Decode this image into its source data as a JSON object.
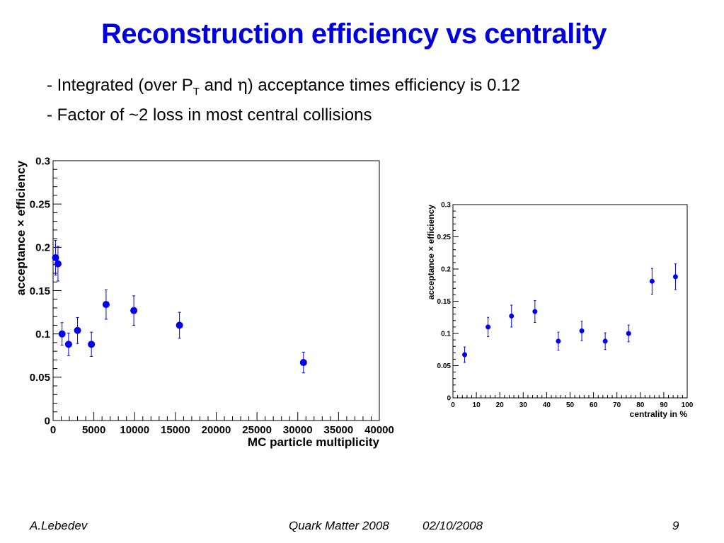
{
  "slide": {
    "title": "Reconstruction efficiency vs centrality",
    "bullet1": {
      "pre": "- Integrated (over P",
      "sub": "T",
      "mid": " and ",
      "greek": "η",
      "post": ") acceptance times efficiency is 0.12"
    },
    "bullet2": "- Factor of ~2 loss in most central collisions"
  },
  "footer": {
    "author": "A.Lebedev",
    "conference": "Quark Matter 2008",
    "date": "02/10/2008",
    "page": "9"
  },
  "colors": {
    "markers": "#0000ee",
    "title": "#0000dd"
  },
  "chart_data": [
    {
      "type": "scatter",
      "xlabel": "MC particle multiplicity",
      "ylabel": "acceptance × efficiency",
      "xlim": [
        0,
        40000
      ],
      "ylim": [
        0,
        0.3
      ],
      "xticks": [
        0,
        5000,
        10000,
        15000,
        20000,
        25000,
        30000,
        35000,
        40000
      ],
      "yticks": [
        0,
        0.05,
        0.1,
        0.15,
        0.2,
        0.25,
        0.3
      ],
      "points": [
        {
          "x": 300,
          "y": 0.188,
          "err": 0.02
        },
        {
          "x": 600,
          "y": 0.181,
          "err": 0.02
        },
        {
          "x": 1100,
          "y": 0.1,
          "err": 0.013
        },
        {
          "x": 1900,
          "y": 0.088,
          "err": 0.013
        },
        {
          "x": 3000,
          "y": 0.104,
          "err": 0.015
        },
        {
          "x": 4700,
          "y": 0.088,
          "err": 0.014
        },
        {
          "x": 6500,
          "y": 0.134,
          "err": 0.017
        },
        {
          "x": 9900,
          "y": 0.127,
          "err": 0.017
        },
        {
          "x": 15500,
          "y": 0.11,
          "err": 0.015
        },
        {
          "x": 30700,
          "y": 0.067,
          "err": 0.012
        }
      ]
    },
    {
      "type": "scatter",
      "xlabel": "centrality in %",
      "ylabel": "acceptance × efficiency",
      "xlim": [
        0,
        100
      ],
      "ylim": [
        0,
        0.3
      ],
      "xticks": [
        0,
        10,
        20,
        30,
        40,
        50,
        60,
        70,
        80,
        90,
        100
      ],
      "yticks": [
        0,
        0.05,
        0.1,
        0.15,
        0.2,
        0.25,
        0.3
      ],
      "points": [
        {
          "x": 5,
          "y": 0.067,
          "err": 0.012
        },
        {
          "x": 15,
          "y": 0.11,
          "err": 0.015
        },
        {
          "x": 25,
          "y": 0.127,
          "err": 0.017
        },
        {
          "x": 35,
          "y": 0.134,
          "err": 0.017
        },
        {
          "x": 45,
          "y": 0.088,
          "err": 0.014
        },
        {
          "x": 55,
          "y": 0.104,
          "err": 0.015
        },
        {
          "x": 65,
          "y": 0.088,
          "err": 0.013
        },
        {
          "x": 75,
          "y": 0.1,
          "err": 0.013
        },
        {
          "x": 85,
          "y": 0.181,
          "err": 0.02
        },
        {
          "x": 95,
          "y": 0.188,
          "err": 0.02
        }
      ]
    }
  ]
}
